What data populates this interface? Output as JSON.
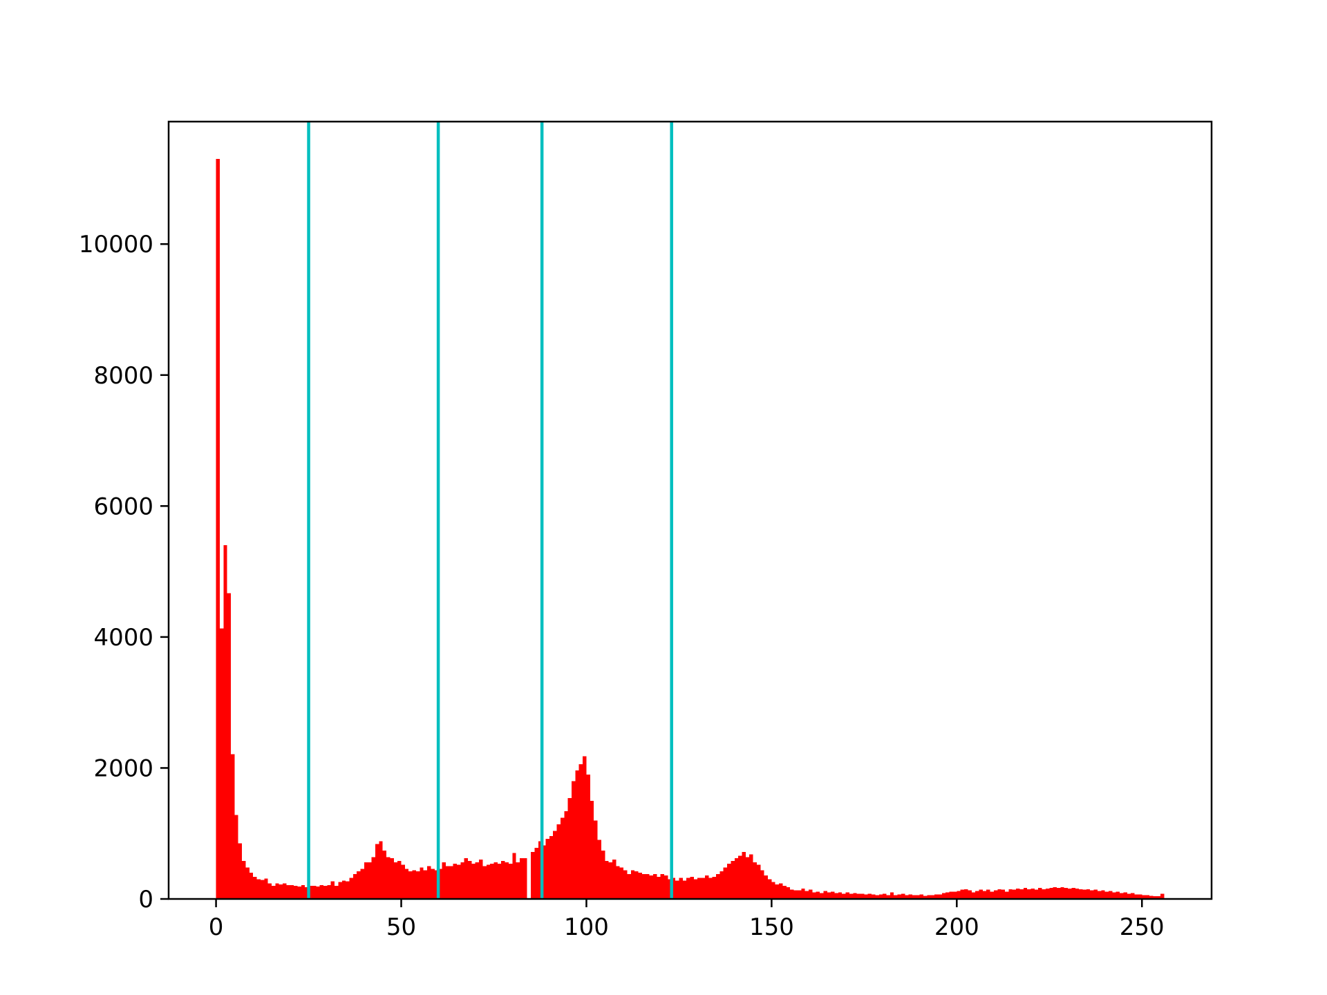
{
  "chart_data": {
    "type": "histogram",
    "color": "#ff0000",
    "bins": [
      0,
      1,
      2,
      3,
      4,
      5,
      6,
      7,
      8,
      9,
      10,
      11,
      12,
      13,
      14,
      15,
      16,
      17,
      18,
      19,
      20,
      21,
      22,
      23,
      24,
      25,
      26,
      27,
      28,
      29,
      30,
      31,
      32,
      33,
      34,
      35,
      36,
      37,
      38,
      39,
      40,
      41,
      42,
      43,
      44,
      45,
      46,
      47,
      48,
      49,
      50,
      51,
      52,
      53,
      54,
      55,
      56,
      57,
      58,
      59,
      60,
      61,
      62,
      63,
      64,
      65,
      66,
      67,
      68,
      69,
      70,
      71,
      72,
      73,
      74,
      75,
      76,
      77,
      78,
      79,
      80,
      81,
      82,
      83,
      84,
      85,
      86,
      87,
      88,
      89,
      90,
      91,
      92,
      93,
      94,
      95,
      96,
      97,
      98,
      99,
      100,
      101,
      102,
      103,
      104,
      105,
      106,
      107,
      108,
      109,
      110,
      111,
      112,
      113,
      114,
      115,
      116,
      117,
      118,
      119,
      120,
      121,
      122,
      123,
      124,
      125,
      126,
      127,
      128,
      129,
      130,
      131,
      132,
      133,
      134,
      135,
      136,
      137,
      138,
      139,
      140,
      141,
      142,
      143,
      144,
      145,
      146,
      147,
      148,
      149,
      150,
      151,
      152,
      153,
      154,
      155,
      156,
      157,
      158,
      159,
      160,
      161,
      162,
      163,
      164,
      165,
      166,
      167,
      168,
      169,
      170,
      171,
      172,
      173,
      174,
      175,
      176,
      177,
      178,
      179,
      180,
      181,
      182,
      183,
      184,
      185,
      186,
      187,
      188,
      189,
      190,
      191,
      192,
      193,
      194,
      195,
      196,
      197,
      198,
      199,
      200,
      201,
      202,
      203,
      204,
      205,
      206,
      207,
      208,
      209,
      210,
      211,
      212,
      213,
      214,
      215,
      216,
      217,
      218,
      219,
      220,
      221,
      222,
      223,
      224,
      225,
      226,
      227,
      228,
      229,
      230,
      231,
      232,
      233,
      234,
      235,
      236,
      237,
      238,
      239,
      240,
      241,
      242,
      243,
      244,
      245,
      246,
      247,
      248,
      249,
      250,
      251,
      252,
      253,
      254,
      255,
      256
    ],
    "values": [
      11300,
      4130,
      5400,
      4670,
      2210,
      1280,
      850,
      580,
      480,
      400,
      340,
      300,
      290,
      310,
      240,
      200,
      240,
      220,
      240,
      210,
      210,
      200,
      190,
      210,
      180,
      200,
      200,
      190,
      210,
      200,
      210,
      270,
      200,
      260,
      280,
      270,
      320,
      380,
      420,
      460,
      560,
      560,
      640,
      840,
      880,
      740,
      640,
      620,
      560,
      580,
      520,
      460,
      420,
      440,
      420,
      480,
      440,
      500,
      460,
      440,
      460,
      560,
      500,
      500,
      540,
      520,
      560,
      620,
      580,
      540,
      560,
      600,
      500,
      520,
      540,
      560,
      540,
      580,
      560,
      540,
      700,
      560,
      620,
      620,
      0,
      720,
      780,
      880,
      820,
      920,
      960,
      1040,
      1140,
      1240,
      1340,
      1540,
      1800,
      1960,
      2060,
      2180,
      1900,
      1500,
      1200,
      900,
      740,
      580,
      560,
      600,
      500,
      480,
      440,
      380,
      440,
      420,
      400,
      380,
      380,
      360,
      380,
      340,
      380,
      360,
      300,
      320,
      280,
      320,
      280,
      320,
      340,
      300,
      320,
      320,
      360,
      320,
      340,
      380,
      420,
      480,
      540,
      580,
      620,
      660,
      720,
      640,
      680,
      560,
      520,
      440,
      360,
      300,
      260,
      220,
      240,
      200,
      180,
      140,
      130,
      130,
      160,
      120,
      140,
      100,
      110,
      90,
      120,
      100,
      110,
      90,
      100,
      80,
      100,
      80,
      90,
      80,
      80,
      70,
      80,
      70,
      60,
      70,
      80,
      60,
      100,
      60,
      70,
      80,
      60,
      70,
      60,
      60,
      70,
      50,
      60,
      60,
      70,
      70,
      90,
      100,
      110,
      110,
      120,
      140,
      150,
      130,
      100,
      120,
      140,
      120,
      140,
      110,
      130,
      150,
      140,
      110,
      150,
      140,
      160,
      150,
      170,
      150,
      160,
      140,
      170,
      150,
      160,
      170,
      180,
      170,
      180,
      170,
      160,
      170,
      160,
      150,
      140,
      150,
      130,
      140,
      120,
      130,
      110,
      120,
      100,
      110,
      90,
      100,
      80,
      90,
      70,
      70,
      60,
      60,
      50,
      40,
      40,
      80
    ],
    "vlines": [
      25,
      60,
      88,
      123
    ],
    "vline_color": "#00bfbf",
    "xlim": [
      -12.8,
      268.8
    ],
    "xticks": [
      0,
      50,
      100,
      150,
      200,
      250
    ],
    "ylim": [
      0,
      11870
    ],
    "yticks": [
      0,
      2000,
      4000,
      6000,
      8000,
      10000
    ]
  }
}
